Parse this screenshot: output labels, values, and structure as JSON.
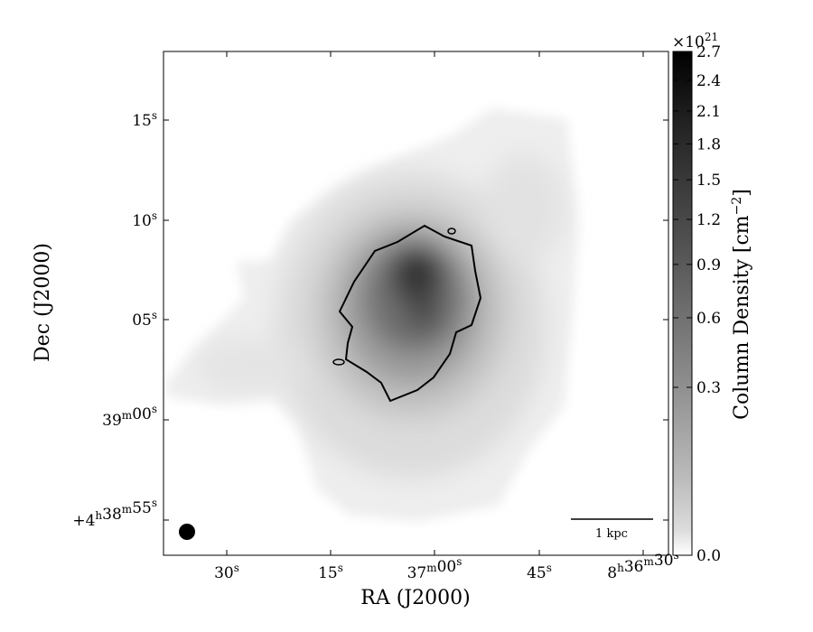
{
  "chart_data": {
    "type": "heatmap",
    "title": "",
    "xlabel": "RA (J2000)",
    "ylabel": "Dec (J2000)",
    "x_ticks": [
      {
        "label": "30",
        "sup": "s"
      },
      {
        "label": "15",
        "sup": "s"
      },
      {
        "label": "37",
        "sup": "m",
        "label2": "00",
        "sup2": "s"
      },
      {
        "label": "45",
        "sup": "s"
      },
      {
        "label": "8",
        "sup": "h",
        "label2": "36",
        "sup2": "m",
        "label3": "30",
        "sup3": "s"
      }
    ],
    "y_ticks": [
      {
        "label": "15",
        "sup": "s"
      },
      {
        "label": "10",
        "sup": "s"
      },
      {
        "label": "05",
        "sup": "s"
      },
      {
        "label": "39",
        "sup": "m",
        "label2": "00",
        "sup2": "s"
      },
      {
        "label": "+4",
        "sup": "h",
        "label2": "38",
        "sup2": "m",
        "label3": "55",
        "sup3": "s"
      }
    ],
    "scalebar_label": "1 kpc",
    "beam": "filled-circle",
    "colormap": "gray_r",
    "colorbar": {
      "label_main": "Column Density [cm",
      "label_exp": "−2",
      "label_end": "]",
      "offset_base": "×10",
      "offset_exp": "21",
      "scale": "sqrt",
      "min": 0.0,
      "max": 2.7,
      "ticks": [
        "0.0",
        "0.3",
        "0.6",
        "0.9",
        "1.2",
        "1.5",
        "1.8",
        "2.1",
        "2.4",
        "2.7"
      ],
      "tick_values": [
        0.0,
        0.3,
        0.6,
        0.9,
        1.2,
        1.5,
        1.8,
        2.1,
        2.4,
        2.7
      ]
    },
    "contour": "single black contour around central emission peak",
    "grid": false
  }
}
